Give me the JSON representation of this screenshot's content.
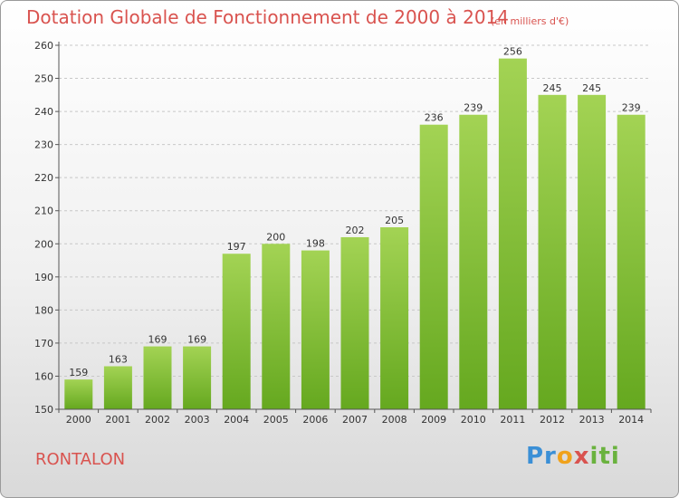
{
  "header": {
    "title": "Dotation Globale de Fonctionnement de 2000 à 2014",
    "unit": "(en milliers d'€)"
  },
  "footer": {
    "commune": "RONTALON",
    "logo": "Proxiti"
  },
  "colors": {
    "title": "#d9534f",
    "bar_light": "#a3d354",
    "bar_dark": "#65a81f",
    "grid": "#c8c8c8"
  },
  "chart_data": {
    "type": "bar",
    "title": "Dotation Globale de Fonctionnement de 2000 à 2014",
    "subtitle": "(en milliers d'€)",
    "xlabel": "",
    "ylabel": "",
    "categories": [
      "2000",
      "2001",
      "2002",
      "2003",
      "2004",
      "2005",
      "2006",
      "2007",
      "2008",
      "2009",
      "2010",
      "2011",
      "2012",
      "2013",
      "2014"
    ],
    "values": [
      159,
      163,
      169,
      169,
      197,
      200,
      198,
      202,
      205,
      236,
      239,
      256,
      245,
      245,
      239
    ],
    "ylim": [
      150,
      260
    ],
    "yticks": [
      150,
      160,
      170,
      180,
      190,
      200,
      210,
      220,
      230,
      240,
      250,
      260
    ],
    "grid": true,
    "data_labels": true
  }
}
